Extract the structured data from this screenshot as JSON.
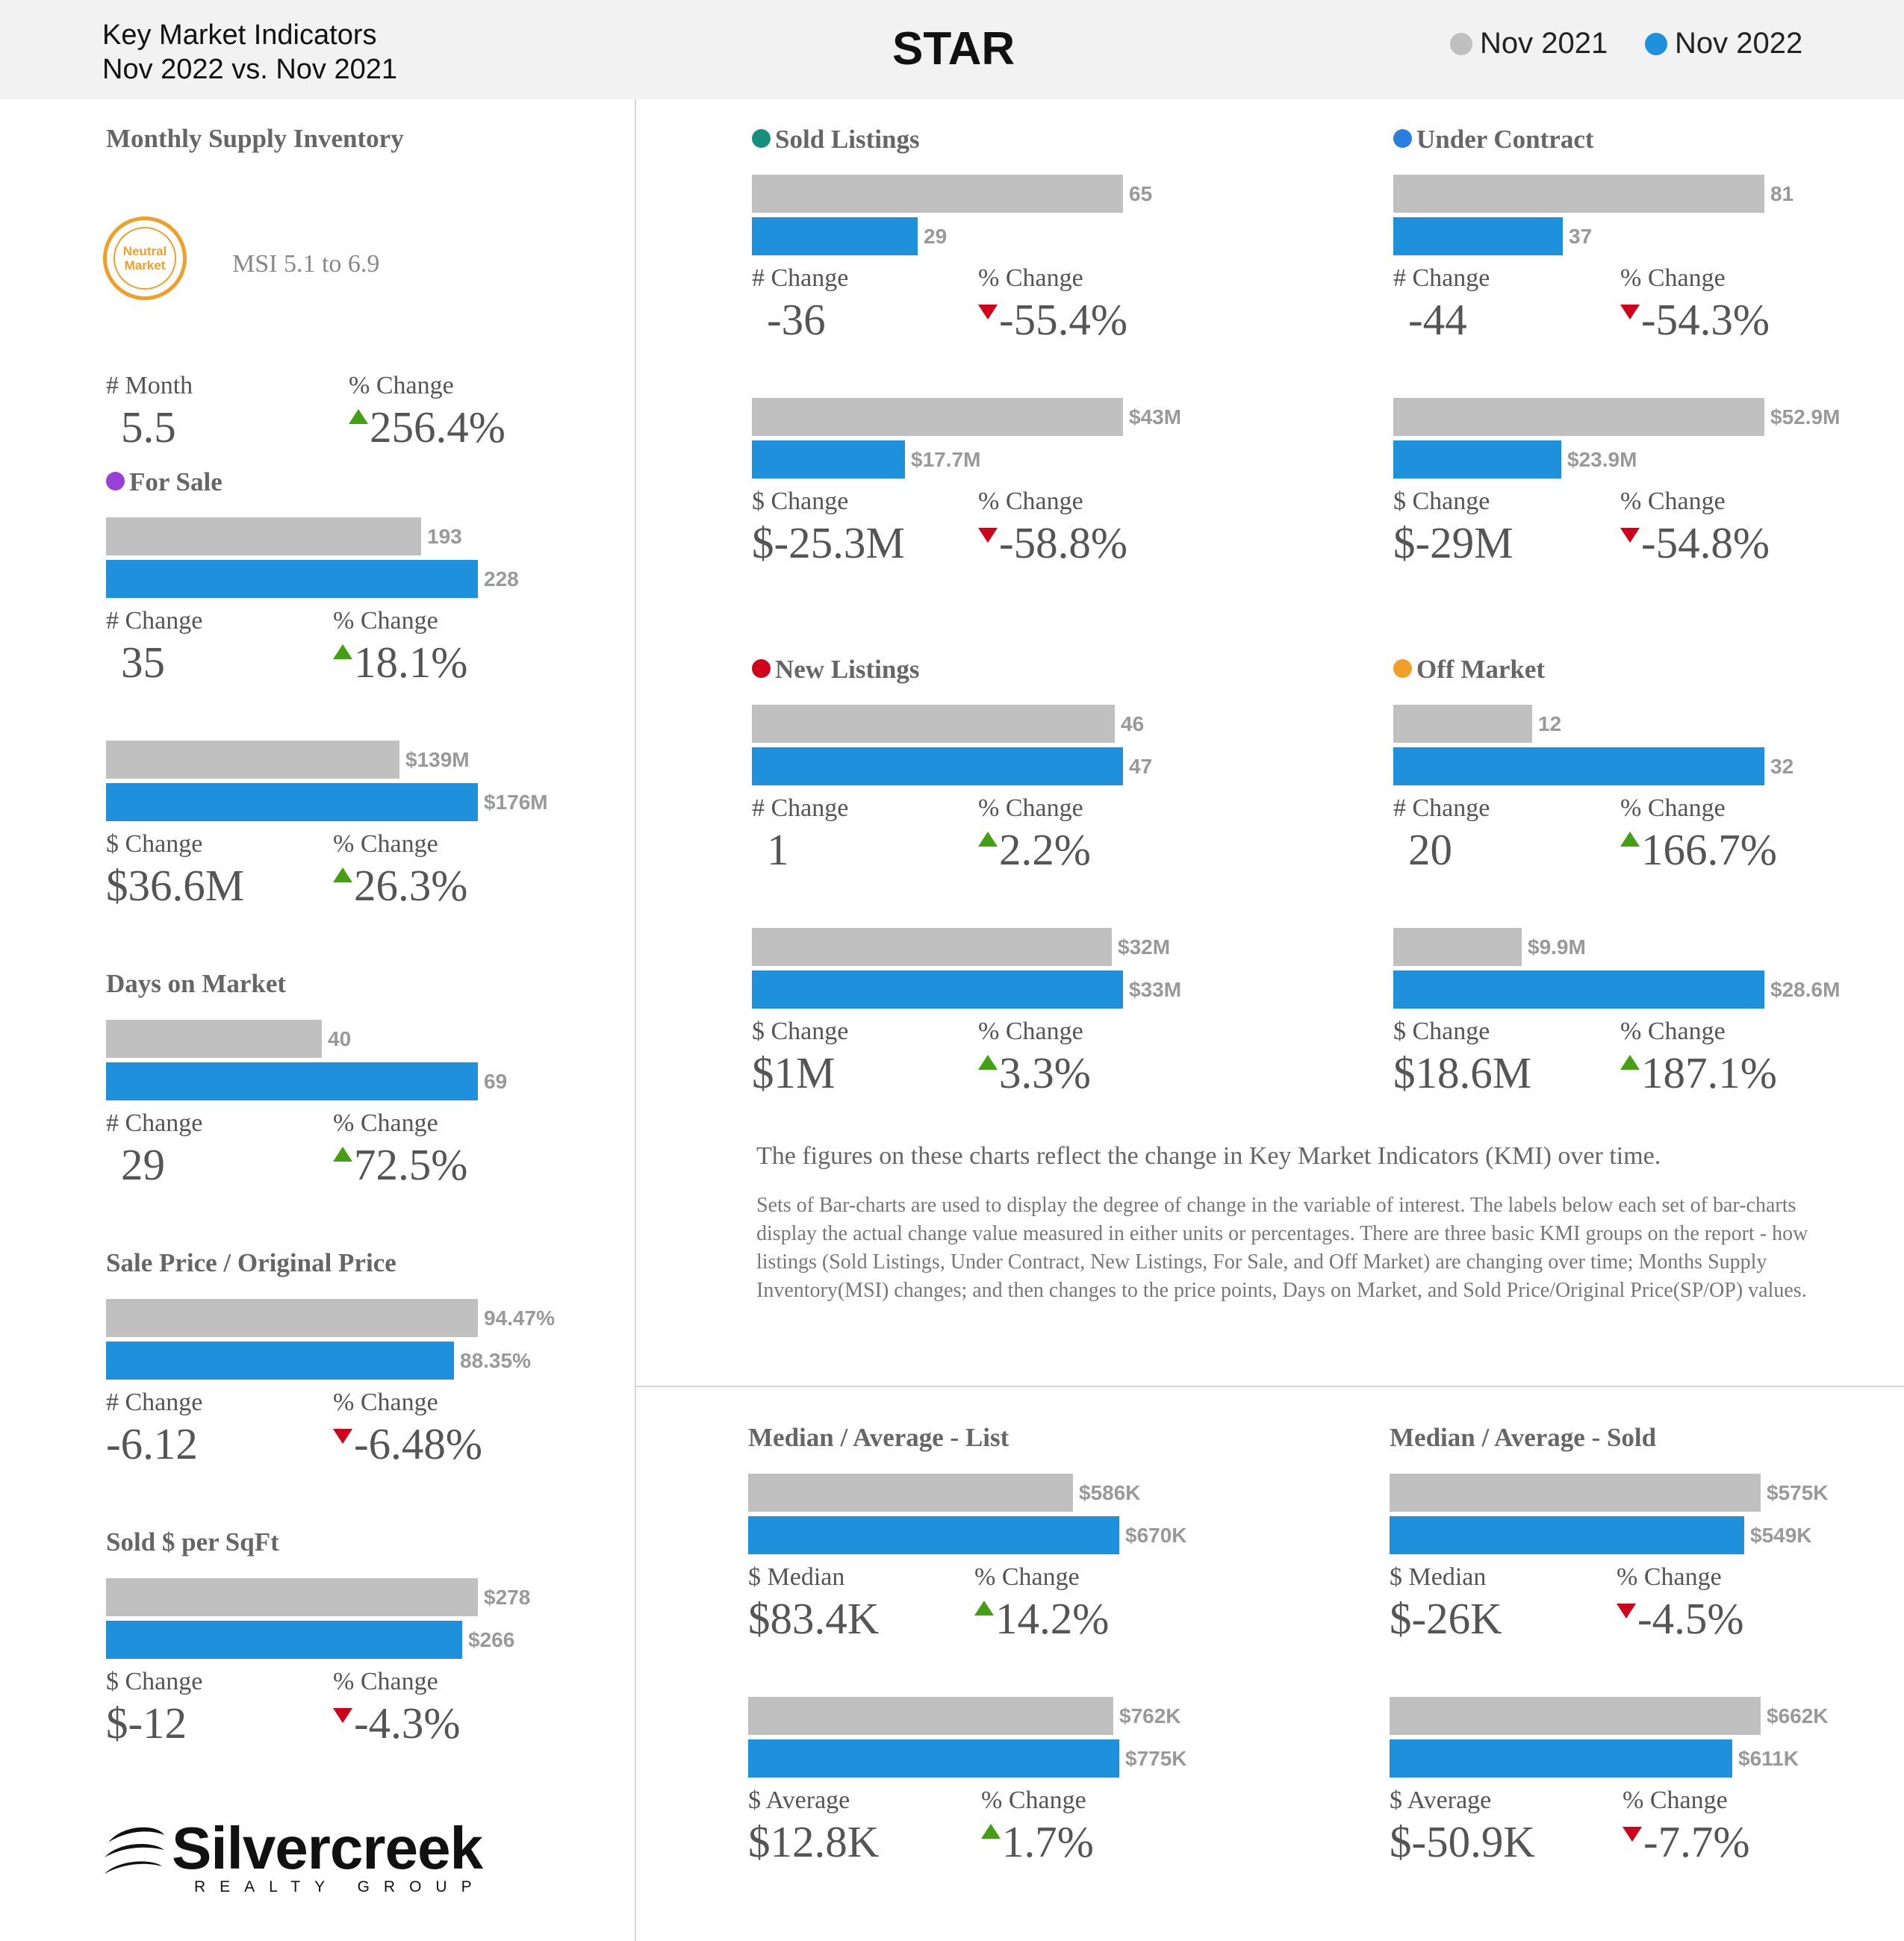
{
  "header": {
    "title_line1": "Key Market Indicators",
    "title_line2": "Nov 2022 vs. Nov 2021",
    "area": "STAR",
    "legend": [
      {
        "label": "Nov 2021",
        "color": "#c0c0c0"
      },
      {
        "label": "Nov 2022",
        "color": "#1e90dc"
      }
    ]
  },
  "msi": {
    "title": "Monthly Supply Inventory",
    "badge_line1": "Neutral",
    "badge_line2": "Market",
    "range_text": "MSI 5.1 to 6.9",
    "label1": "# Month",
    "value1": "5.5",
    "label2": "% Change",
    "value2": "256.4%",
    "direction": "up"
  },
  "chart_data": [
    {
      "id": "for_sale_count",
      "type": "bar",
      "title": "For Sale",
      "dot_color": "#9b3fd6",
      "series": [
        {
          "name": "Nov 2021",
          "value": 193,
          "label": "193"
        },
        {
          "name": "Nov 2022",
          "value": 228,
          "label": "228"
        }
      ],
      "change_label": "# Change",
      "change_value": "35",
      "pct_label": "% Change",
      "pct_value": "18.1%",
      "direction": "up"
    },
    {
      "id": "for_sale_dollar",
      "type": "bar",
      "series": [
        {
          "name": "Nov 2021",
          "value": 139,
          "label": "$139M"
        },
        {
          "name": "Nov 2022",
          "value": 176,
          "label": "$176M"
        }
      ],
      "change_label": "$ Change",
      "change_value": "$36.6M",
      "pct_label": "% Change",
      "pct_value": "26.3%",
      "direction": "up"
    },
    {
      "id": "dom",
      "type": "bar",
      "title": "Days on Market",
      "series": [
        {
          "name": "Nov 2021",
          "value": 40,
          "label": "40"
        },
        {
          "name": "Nov 2022",
          "value": 69,
          "label": "69"
        }
      ],
      "change_label": "# Change",
      "change_value": "29",
      "pct_label": "% Change",
      "pct_value": "72.5%",
      "direction": "up"
    },
    {
      "id": "spop",
      "type": "bar",
      "title": "Sale Price / Original Price",
      "series": [
        {
          "name": "Nov 2021",
          "value": 94.47,
          "label": "94.47%"
        },
        {
          "name": "Nov 2022",
          "value": 88.35,
          "label": "88.35%"
        }
      ],
      "change_label": "# Change",
      "change_value": "-6.12",
      "pct_label": "% Change",
      "pct_value": "-6.48%",
      "direction": "down"
    },
    {
      "id": "sqft",
      "type": "bar",
      "title": "Sold $ per SqFt",
      "series": [
        {
          "name": "Nov 2021",
          "value": 278,
          "label": "$278"
        },
        {
          "name": "Nov 2022",
          "value": 266,
          "label": "$266"
        }
      ],
      "change_label": "$ Change",
      "change_value": "$-12",
      "pct_label": "% Change",
      "pct_value": "-4.3%",
      "direction": "down"
    },
    {
      "id": "sold_count",
      "type": "bar",
      "title": "Sold Listings",
      "dot_color": "#14907c",
      "series": [
        {
          "name": "Nov 2021",
          "value": 65,
          "label": "65"
        },
        {
          "name": "Nov 2022",
          "value": 29,
          "label": "29"
        }
      ],
      "change_label": "# Change",
      "change_value": "-36",
      "pct_label": "% Change",
      "pct_value": "-55.4%",
      "direction": "down"
    },
    {
      "id": "sold_dollar",
      "type": "bar",
      "series": [
        {
          "name": "Nov 2021",
          "value": 43,
          "label": "$43M"
        },
        {
          "name": "Nov 2022",
          "value": 17.7,
          "label": "$17.7M"
        }
      ],
      "change_label": "$ Change",
      "change_value": "$-25.3M",
      "pct_label": "% Change",
      "pct_value": "-58.8%",
      "direction": "down"
    },
    {
      "id": "uc_count",
      "type": "bar",
      "title": "Under Contract",
      "dot_color": "#2b7de0",
      "series": [
        {
          "name": "Nov 2021",
          "value": 81,
          "label": "81"
        },
        {
          "name": "Nov 2022",
          "value": 37,
          "label": "37"
        }
      ],
      "change_label": "# Change",
      "change_value": "-44",
      "pct_label": "% Change",
      "pct_value": "-54.3%",
      "direction": "down"
    },
    {
      "id": "uc_dollar",
      "type": "bar",
      "series": [
        {
          "name": "Nov 2021",
          "value": 52.9,
          "label": "$52.9M"
        },
        {
          "name": "Nov 2022",
          "value": 23.9,
          "label": "$23.9M"
        }
      ],
      "change_label": "$ Change",
      "change_value": "$-29M",
      "pct_label": "% Change",
      "pct_value": "-54.8%",
      "direction": "down"
    },
    {
      "id": "new_count",
      "type": "bar",
      "title": "New Listings",
      "dot_color": "#d0021b",
      "series": [
        {
          "name": "Nov 2021",
          "value": 46,
          "label": "46"
        },
        {
          "name": "Nov 2022",
          "value": 47,
          "label": "47"
        }
      ],
      "change_label": "# Change",
      "change_value": "1",
      "pct_label": "% Change",
      "pct_value": "2.2%",
      "direction": "up"
    },
    {
      "id": "new_dollar",
      "type": "bar",
      "series": [
        {
          "name": "Nov 2021",
          "value": 32,
          "label": "$32M"
        },
        {
          "name": "Nov 2022",
          "value": 33,
          "label": "$33M"
        }
      ],
      "change_label": "$ Change",
      "change_value": "$1M",
      "pct_label": "% Change",
      "pct_value": "3.3%",
      "direction": "up"
    },
    {
      "id": "off_count",
      "type": "bar",
      "title": "Off Market",
      "dot_color": "#f0a028",
      "series": [
        {
          "name": "Nov 2021",
          "value": 12,
          "label": "12"
        },
        {
          "name": "Nov 2022",
          "value": 32,
          "label": "32"
        }
      ],
      "change_label": "# Change",
      "change_value": "20",
      "pct_label": "% Change",
      "pct_value": "166.7%",
      "direction": "up"
    },
    {
      "id": "off_dollar",
      "type": "bar",
      "series": [
        {
          "name": "Nov 2021",
          "value": 9.9,
          "label": "$9.9M"
        },
        {
          "name": "Nov 2022",
          "value": 28.6,
          "label": "$28.6M"
        }
      ],
      "change_label": "$ Change",
      "change_value": "$18.6M",
      "pct_label": "% Change",
      "pct_value": "187.1%",
      "direction": "up"
    },
    {
      "id": "list_median",
      "type": "bar",
      "title": "Median / Average - List",
      "series": [
        {
          "name": "Nov 2021",
          "value": 586,
          "label": "$586K"
        },
        {
          "name": "Nov 2022",
          "value": 670,
          "label": "$670K"
        }
      ],
      "change_label": "$ Median",
      "change_value": "$83.4K",
      "pct_label": "% Change",
      "pct_value": "14.2%",
      "direction": "up"
    },
    {
      "id": "list_avg",
      "type": "bar",
      "series": [
        {
          "name": "Nov 2021",
          "value": 762,
          "label": "$762K"
        },
        {
          "name": "Nov 2022",
          "value": 775,
          "label": "$775K"
        }
      ],
      "change_label": "$ Average",
      "change_value": "$12.8K",
      "pct_label": "% Change",
      "pct_value": "1.7%",
      "direction": "up"
    },
    {
      "id": "sold_median",
      "type": "bar",
      "title": "Median / Average - Sold",
      "series": [
        {
          "name": "Nov 2021",
          "value": 575,
          "label": "$575K"
        },
        {
          "name": "Nov 2022",
          "value": 549,
          "label": "$549K"
        }
      ],
      "change_label": "$ Median",
      "change_value": "$-26K",
      "pct_label": "% Change",
      "pct_value": "-4.5%",
      "direction": "down"
    },
    {
      "id": "sold_avg",
      "type": "bar",
      "series": [
        {
          "name": "Nov 2021",
          "value": 662,
          "label": "$662K"
        },
        {
          "name": "Nov 2022",
          "value": 611,
          "label": "$611K"
        }
      ],
      "change_label": "$ Average",
      "change_value": "$-50.9K",
      "pct_label": "% Change",
      "pct_value": "-7.7%",
      "direction": "down"
    }
  ],
  "notes": {
    "line1": "The figures on these charts reflect the change in Key Market Indicators (KMI) over time.",
    "line2": "Sets of Bar-charts are used to display the degree of change in the variable of interest. The labels below each set of bar-charts display the actual change value measured in either units or percentages. There are three basic KMI groups on the report - how listings (Sold Listings, Under Contract, New Listings, For Sale, and Off Market) are changing over time; Months Supply Inventory(MSI) changes; and then changes to the price points, Days on Market, and Sold Price/Original Price(SP/OP) values."
  },
  "logo": {
    "name": "Silvercreek",
    "sub": "REALTY GROUP"
  }
}
